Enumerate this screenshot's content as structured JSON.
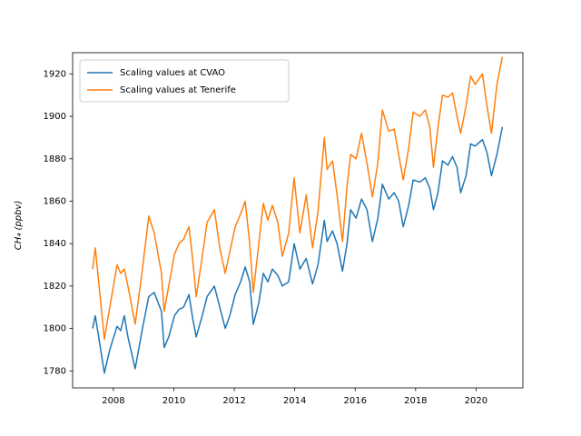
{
  "chart_data": {
    "type": "line",
    "y_label": "CH₄ (ppbv)",
    "x": [
      2007.31,
      2007.4,
      2007.7,
      2007.88,
      2008.12,
      2008.24,
      2008.36,
      2008.48,
      2008.72,
      2008.96,
      2009.17,
      2009.35,
      2009.59,
      2009.68,
      2009.83,
      2010.02,
      2010.17,
      2010.32,
      2010.5,
      2010.62,
      2010.74,
      2010.92,
      2011.1,
      2011.34,
      2011.52,
      2011.7,
      2011.85,
      2012.03,
      2012.21,
      2012.36,
      2012.51,
      2012.63,
      2012.81,
      2012.96,
      2013.11,
      2013.26,
      2013.44,
      2013.59,
      2013.8,
      2013.98,
      2014.17,
      2014.38,
      2014.59,
      2014.77,
      2014.98,
      2015.07,
      2015.25,
      2015.4,
      2015.58,
      2015.73,
      2015.85,
      2016.03,
      2016.21,
      2016.39,
      2016.57,
      2016.75,
      2016.9,
      2017.11,
      2017.29,
      2017.44,
      2017.59,
      2017.77,
      2017.92,
      2018.14,
      2018.32,
      2018.47,
      2018.59,
      2018.74,
      2018.89,
      2019.07,
      2019.22,
      2019.37,
      2019.49,
      2019.67,
      2019.82,
      2019.97,
      2020.21,
      2020.36,
      2020.51,
      2020.69,
      2020.87
    ],
    "series": [
      {
        "name": "Scaling values at CVAO",
        "color": "#1f77b4",
        "values": [
          1800,
          1806,
          1779,
          1790,
          1801,
          1799,
          1806,
          1796,
          1781,
          1800,
          1815,
          1817,
          1808,
          1791,
          1796,
          1806,
          1809,
          1810,
          1816,
          1805,
          1796,
          1805,
          1815,
          1820,
          1810,
          1800,
          1806,
          1816,
          1822,
          1829,
          1822,
          1802,
          1812,
          1826,
          1822,
          1828,
          1825,
          1820,
          1822,
          1840,
          1828,
          1833,
          1821,
          1830,
          1851,
          1841,
          1846,
          1840,
          1827,
          1840,
          1856,
          1852,
          1861,
          1856,
          1841,
          1852,
          1868,
          1861,
          1864,
          1860,
          1848,
          1858,
          1870,
          1869,
          1871,
          1866,
          1856,
          1864,
          1879,
          1877,
          1881,
          1876,
          1864,
          1872,
          1887,
          1886,
          1889,
          1883,
          1872,
          1882,
          1895
        ]
      },
      {
        "name": "Scaling values at Tenerife",
        "color": "#ff7f0e",
        "values": [
          1828,
          1838,
          1795,
          1810,
          1830,
          1826,
          1828,
          1820,
          1802,
          1828,
          1853,
          1845,
          1826,
          1808,
          1820,
          1835,
          1840,
          1842,
          1848,
          1833,
          1815,
          1832,
          1850,
          1856,
          1838,
          1826,
          1836,
          1848,
          1854,
          1860,
          1840,
          1817,
          1840,
          1859,
          1851,
          1858,
          1850,
          1834,
          1845,
          1871,
          1845,
          1863,
          1838,
          1855,
          1890,
          1875,
          1879,
          1863,
          1841,
          1867,
          1882,
          1880,
          1892,
          1878,
          1862,
          1878,
          1903,
          1893,
          1894,
          1882,
          1870,
          1885,
          1902,
          1900,
          1903,
          1895,
          1876,
          1895,
          1910,
          1909,
          1911,
          1900,
          1892,
          1905,
          1919,
          1915,
          1920,
          1905,
          1892,
          1915,
          1928
        ]
      }
    ],
    "xlim": [
      2006.65,
      2021.55
    ],
    "ylim": [
      1772,
      1930
    ],
    "xticks": [
      2008,
      2010,
      2012,
      2014,
      2016,
      2018,
      2020
    ],
    "yticks": [
      1780,
      1800,
      1820,
      1840,
      1860,
      1880,
      1900,
      1920
    ],
    "legend": "upper left",
    "grid": false
  }
}
